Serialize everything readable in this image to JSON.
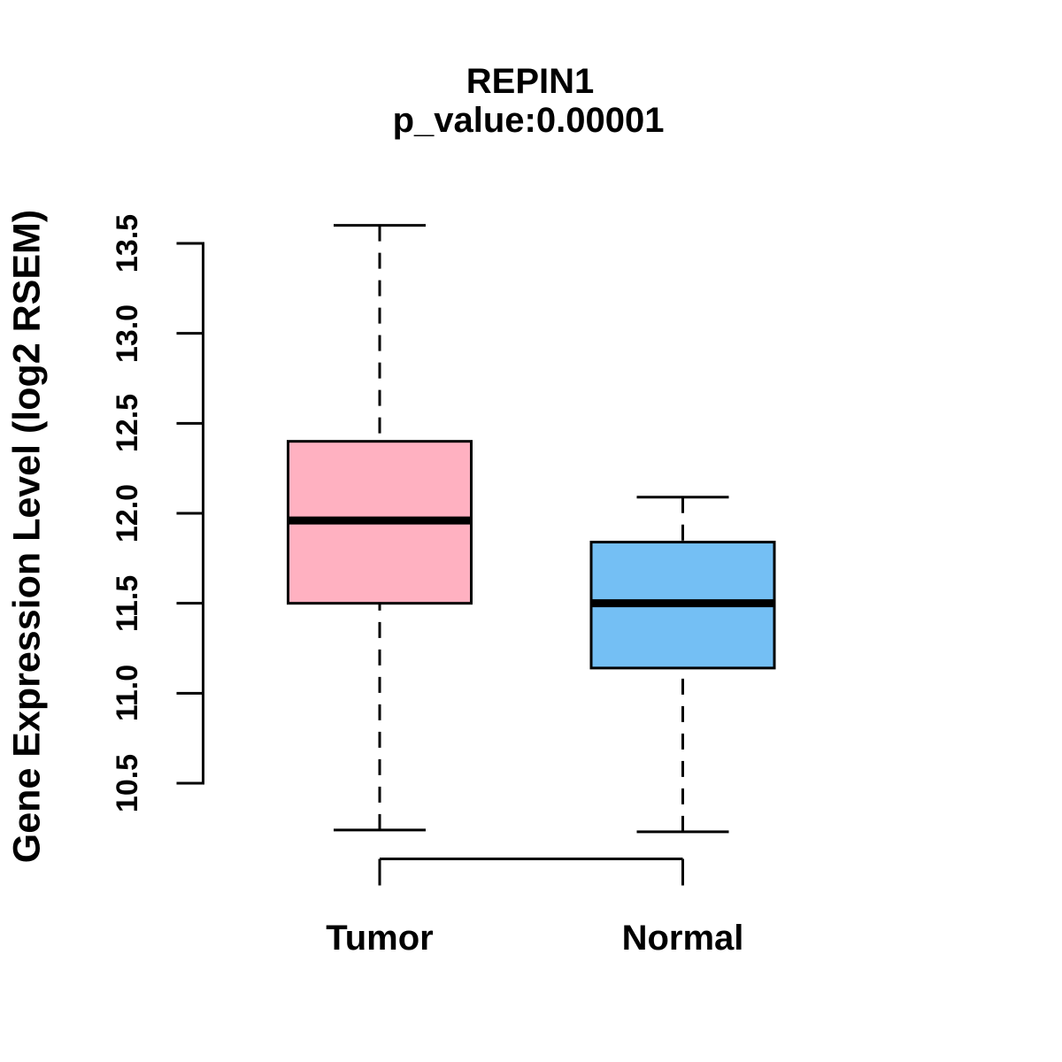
{
  "figure": {
    "background": "#FFFFFF",
    "text_color": "#000000",
    "axis_color": "#000000"
  },
  "chart_data": {
    "type": "boxplot",
    "title": "REPIN1",
    "subtitle": "p_value:0.00001",
    "ylabel": "Gene Expression Level (log2 RSEM)",
    "xlabel": "",
    "categories": [
      "Tumor",
      "Normal"
    ],
    "y_ticks": [
      {
        "value": 10.5,
        "label": "10.5"
      },
      {
        "value": 11.0,
        "label": "11.0"
      },
      {
        "value": 11.5,
        "label": "11.5"
      },
      {
        "value": 12.0,
        "label": "12.0"
      },
      {
        "value": 12.5,
        "label": "12.5"
      },
      {
        "value": 13.0,
        "label": "13.0"
      },
      {
        "value": 13.5,
        "label": "13.5"
      }
    ],
    "ylim": [
      10.1,
      13.7
    ],
    "grid": false,
    "legend": "none",
    "series": [
      {
        "name": "Tumor",
        "fill": "#FFB1C1",
        "whisker_low": 10.24,
        "q1": 11.5,
        "median": 11.96,
        "q3": 12.4,
        "whisker_high": 13.6
      },
      {
        "name": "Normal",
        "fill": "#74BFF4",
        "whisker_low": 10.23,
        "q1": 11.14,
        "median": 11.5,
        "q3": 11.84,
        "whisker_high": 12.09
      }
    ]
  }
}
